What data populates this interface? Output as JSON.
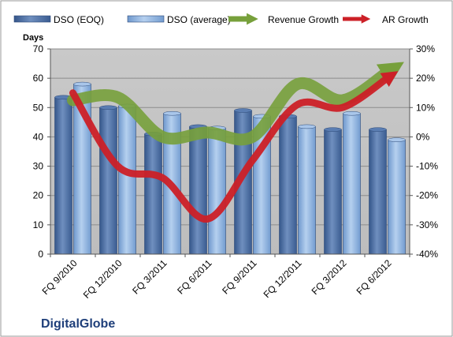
{
  "company": "DigitalGlobe",
  "chart_data": {
    "type": "bar",
    "ylabel": "Days",
    "categories": [
      "FQ 9/2010",
      "FQ 12/2010",
      "FQ 3/2011",
      "FQ 6/2011",
      "FQ 9/2011",
      "FQ 12/2011",
      "FQ 3/2012",
      "FQ 6/2012"
    ],
    "ylim": [
      0,
      70
    ],
    "yticks": [
      "0",
      "10",
      "20",
      "30",
      "40",
      "50",
      "60",
      "70"
    ],
    "y2lim": [
      -40,
      30
    ],
    "y2ticks": [
      "-40%",
      "-30%",
      "-20%",
      "-10%",
      "0%",
      "10%",
      "20%",
      "30%"
    ],
    "grid": true,
    "legend_position": "top",
    "series": [
      {
        "name": "DSO (EOQ)",
        "kind": "bar",
        "axis": "left",
        "color": "#4a6fa5",
        "values": [
          53.5,
          50,
          41,
          43.5,
          49,
          47,
          42.5,
          42.5
        ]
      },
      {
        "name": "DSO (average)",
        "kind": "bar",
        "axis": "left",
        "color": "#8fb4e3",
        "values": [
          58,
          50.5,
          48,
          43,
          47,
          43.5,
          48,
          39
        ]
      },
      {
        "name": "Revenue Growth",
        "kind": "line",
        "axis": "right",
        "color": "#77a03b",
        "values": [
          12.5,
          13.5,
          0,
          1.5,
          0,
          18,
          12.5,
          22
        ]
      },
      {
        "name": "AR Growth",
        "kind": "line",
        "axis": "right",
        "color": "#cc2027",
        "values": [
          15,
          -10,
          -14,
          -28,
          -8,
          11,
          10,
          20
        ]
      }
    ]
  }
}
